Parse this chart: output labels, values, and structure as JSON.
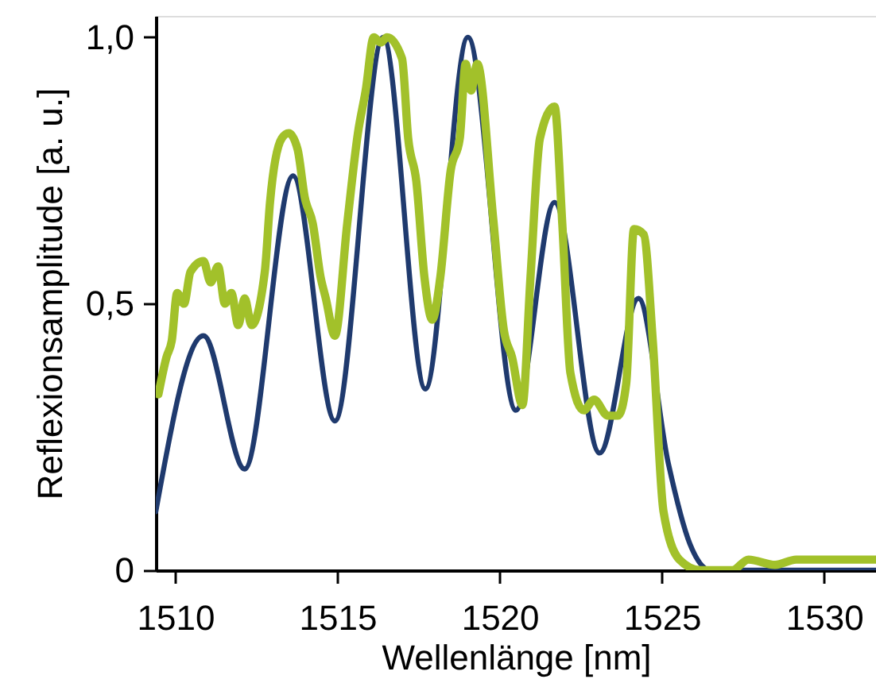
{
  "chart_data": {
    "type": "line",
    "xlabel": "Wellenlänge [nm]",
    "ylabel": "Reflexionsamplitude [a. u.]",
    "xlim": [
      1509.4,
      1531.6
    ],
    "xticks": [
      1510,
      1515,
      1520,
      1525,
      1530
    ],
    "ylim": [
      0,
      1.04
    ],
    "yticks": [
      0,
      {
        "value": 0.5,
        "label": "0,5"
      },
      {
        "value": 1.0,
        "label": "1,0"
      }
    ],
    "grid": false,
    "marker": "none",
    "line_style": "solid",
    "series": [
      {
        "color": "#1f3a6e",
        "x": [
          1509.4,
          1510.87,
          1512.14,
          1513.63,
          1514.92,
          1516.41,
          1517.71,
          1519.02,
          1520.5,
          1521.69,
          1523.08,
          1524.28,
          1525.2,
          1525.86,
          1526.5,
          1528,
          1531.6
        ],
        "values": [
          0.11,
          0.44,
          0.19,
          0.74,
          0.28,
          1.0,
          0.34,
          1.0,
          0.3,
          0.69,
          0.22,
          0.51,
          0.2,
          0.05,
          0.0,
          0.0,
          0.0
        ]
      },
      {
        "color": "#a2c12a",
        "x": [
          1509.48,
          1509.73,
          1509.89,
          1510.06,
          1510.27,
          1510.47,
          1510.87,
          1511.09,
          1511.32,
          1511.53,
          1511.73,
          1511.94,
          1512.14,
          1512.35,
          1512.76,
          1512.92,
          1513.28,
          1513.5,
          1513.77,
          1513.99,
          1514.24,
          1514.48,
          1514.64,
          1514.92,
          1515.3,
          1515.63,
          1515.87,
          1516.12,
          1516.33,
          1516.53,
          1516.99,
          1517.18,
          1517.43,
          1517.68,
          1517.92,
          1518.17,
          1518.49,
          1518.77,
          1518.95,
          1519.12,
          1519.31,
          1519.8,
          1520.13,
          1520.38,
          1520.7,
          1520.95,
          1521.24,
          1521.69,
          1521.93,
          1522.18,
          1522.59,
          1522.91,
          1523.33,
          1523.65,
          1523.9,
          1524.14,
          1524.44,
          1524.72,
          1525.05,
          1525.54,
          1526.19,
          1527.17,
          1527.67,
          1528.49,
          1529.14,
          1530.45,
          1531.6
        ],
        "values": [
          0.33,
          0.4,
          0.43,
          0.52,
          0.5,
          0.56,
          0.58,
          0.54,
          0.57,
          0.5,
          0.52,
          0.46,
          0.51,
          0.46,
          0.56,
          0.69,
          0.81,
          0.82,
          0.79,
          0.7,
          0.65,
          0.55,
          0.51,
          0.44,
          0.65,
          0.82,
          0.9,
          1.0,
          0.99,
          1.0,
          0.96,
          0.81,
          0.73,
          0.55,
          0.47,
          0.55,
          0.75,
          0.81,
          0.95,
          0.9,
          0.95,
          0.66,
          0.45,
          0.4,
          0.31,
          0.55,
          0.81,
          0.87,
          0.65,
          0.37,
          0.3,
          0.32,
          0.29,
          0.29,
          0.35,
          0.64,
          0.63,
          0.43,
          0.11,
          0.02,
          0.0,
          0.0,
          0.02,
          0.01,
          0.02,
          0.02,
          0.02
        ]
      }
    ]
  }
}
